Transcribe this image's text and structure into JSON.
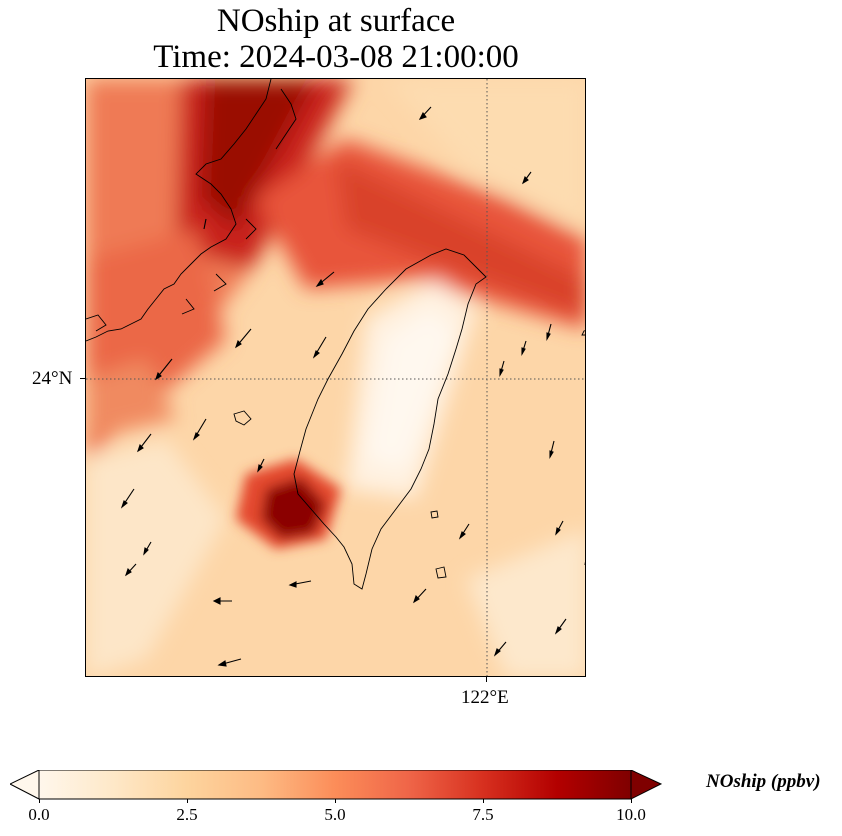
{
  "title": {
    "line1": "NOship at surface",
    "line2": "Time: 2024-03-08 21:00:00"
  },
  "map": {
    "projection": "plate-carree",
    "gridlines": "dotted",
    "lat_label": "24°N",
    "lon_label": "122°E",
    "colormap": "OrRd",
    "features": [
      "coastline",
      "wind-vectors",
      "concentration-field"
    ]
  },
  "colorbar": {
    "label": "NOship (ppbv)",
    "ticks": [
      "0.0",
      "2.5",
      "5.0",
      "7.5",
      "10.0"
    ],
    "min": 0.0,
    "max": 10.0,
    "extend": "both",
    "colors": [
      "#fff7ec",
      "#fee8c8",
      "#fdd49e",
      "#fdbb84",
      "#fc8d59",
      "#ef6548",
      "#d7301f",
      "#b30000",
      "#7f0000"
    ]
  }
}
